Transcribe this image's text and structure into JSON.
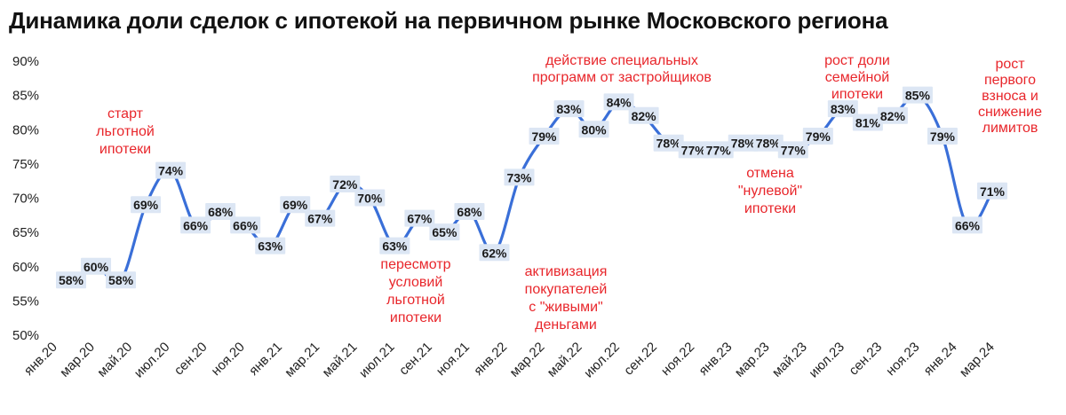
{
  "title": "Динамика доли сделок с ипотекой на первичном рынке Московского региона",
  "chart_data": {
    "type": "line",
    "title": "Динамика доли сделок с ипотекой на первичном рынке Московского региона",
    "xlabel": "",
    "ylabel": "",
    "ylim": [
      50,
      90
    ],
    "ytick_labels": [
      "50%",
      "55%",
      "60%",
      "65%",
      "70%",
      "75%",
      "80%",
      "85%",
      "90%"
    ],
    "yticks": [
      50,
      55,
      60,
      65,
      70,
      75,
      80,
      85,
      90
    ],
    "x_tick_labels": [
      "янв.20",
      "мар.20",
      "май.20",
      "июл.20",
      "сен.20",
      "ноя.20",
      "янв.21",
      "мар.21",
      "май.21",
      "июл.21",
      "сен.21",
      "ноя.21",
      "янв.22",
      "мар.22",
      "май.22",
      "июл.22",
      "сен.22",
      "ноя.22",
      "янв.23",
      "мар.23",
      "май.23",
      "июл.23",
      "сен.23",
      "ноя.23",
      "янв.24",
      "мар.24"
    ],
    "line_color": "#3a6fd8",
    "series": [
      {
        "name": "Доля сделок с ипотекой",
        "values": [
          58,
          60,
          58,
          69,
          74,
          66,
          68,
          66,
          63,
          69,
          67,
          72,
          70,
          63,
          67,
          65,
          68,
          62,
          73,
          79,
          83,
          80,
          84,
          82,
          78,
          77,
          77,
          78,
          78,
          77,
          79,
          83,
          81,
          82,
          85,
          79,
          66,
          71
        ],
        "labels": [
          "58%",
          "60%",
          "58%",
          "69%",
          "74%",
          "66%",
          "68%",
          "66%",
          "63%",
          "69%",
          "67%",
          "72%",
          "70%",
          "63%",
          "67%",
          "65%",
          "68%",
          "62%",
          "73%",
          "79%",
          "83%",
          "80%",
          "84%",
          "82%",
          "78%",
          "77%",
          "77%",
          "78%",
          "78%",
          "77%",
          "79%",
          "83%",
          "81%",
          "82%",
          "85%",
          "79%",
          "66%",
          "71%"
        ]
      }
    ],
    "annotations": [
      {
        "text": [
          "старт",
          "льготной",
          "ипотеки"
        ],
        "color": "#e8262b"
      },
      {
        "text": [
          "пересмотр",
          "условий",
          "льготной",
          "ипотеки"
        ],
        "color": "#e8262b"
      },
      {
        "text": [
          "активизация",
          "покупателей",
          "с \"живыми\"",
          "деньгами"
        ],
        "color": "#e8262b"
      },
      {
        "text": [
          "действие специальных",
          "программ от застройщиков"
        ],
        "color": "#e8262b"
      },
      {
        "text": [
          "отмена",
          "\"нулевой\"",
          "ипотеки"
        ],
        "color": "#e8262b"
      },
      {
        "text": [
          "рост доли",
          "семейной",
          "ипотеки"
        ],
        "color": "#e8262b"
      },
      {
        "text": [
          "рост",
          "первого",
          "взноса и",
          "снижение",
          "лимитов"
        ],
        "color": "#e8262b"
      }
    ]
  }
}
